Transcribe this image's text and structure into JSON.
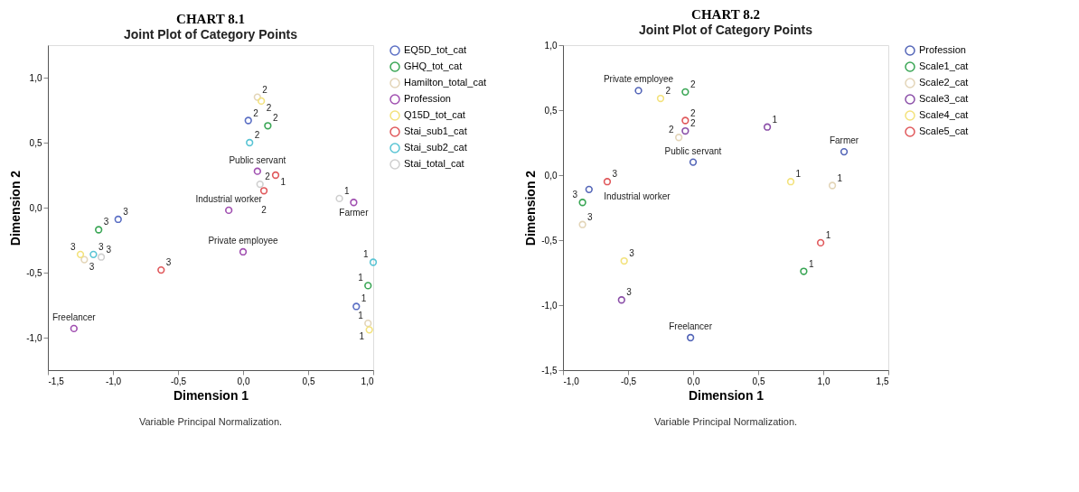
{
  "chart_data": [
    {
      "type": "scatter",
      "title": "CHART 8.1",
      "subtitle": "Joint Plot of Category Points",
      "xlabel": "Dimension 1",
      "ylabel": "Dimension 2",
      "xlim": [
        -1.5,
        1.0
      ],
      "ylim": [
        -1.25,
        1.25
      ],
      "xticks": [
        {
          "value": -1.5,
          "label": "-1,5"
        },
        {
          "value": -1.0,
          "label": "-1,0"
        },
        {
          "value": -0.5,
          "label": "-0,5"
        },
        {
          "value": 0.0,
          "label": "0,0"
        },
        {
          "value": 0.5,
          "label": "0,5"
        },
        {
          "value": 1.0,
          "label": "1,0"
        }
      ],
      "yticks": [
        {
          "value": -1.0,
          "label": "-1,0"
        },
        {
          "value": -0.5,
          "label": "-0,5"
        },
        {
          "value": 0.0,
          "label": "0,0"
        },
        {
          "value": 0.5,
          "label": "0,5"
        },
        {
          "value": 1.0,
          "label": "1,0"
        }
      ],
      "grid": false,
      "legend": "top right",
      "marker": "circle",
      "annotations": [
        {
          "text": "3",
          "x": -0.96,
          "y": -0.09
        },
        {
          "text": "3",
          "x": -1.11,
          "y": -0.17
        },
        {
          "text": "3",
          "x": -1.25,
          "y": -0.36
        },
        {
          "text": "3",
          "x": -1.22,
          "y": -0.4
        },
        {
          "text": "3",
          "x": -1.15,
          "y": -0.36
        },
        {
          "text": "3",
          "x": -1.09,
          "y": -0.38
        },
        {
          "text": "3",
          "x": -0.63,
          "y": -0.48
        },
        {
          "text": "Freelancer",
          "x": -1.3,
          "y": -0.93
        },
        {
          "text": "Industrial worker",
          "x": -0.11,
          "y": -0.02
        },
        {
          "text": "Private employee",
          "x": 0.0,
          "y": -0.34
        },
        {
          "text": "2",
          "x": 0.11,
          "y": 0.85
        },
        {
          "text": "2",
          "x": 0.14,
          "y": 0.82
        },
        {
          "text": "2",
          "x": 0.04,
          "y": 0.67
        },
        {
          "text": "2",
          "x": 0.19,
          "y": 0.63
        },
        {
          "text": "2",
          "x": 0.05,
          "y": 0.5
        },
        {
          "text": "Public servant",
          "x": 0.11,
          "y": 0.28
        },
        {
          "text": "2",
          "x": 0.13,
          "y": 0.18
        },
        {
          "text": "2",
          "x": 0.16,
          "y": 0.13
        },
        {
          "text": "1",
          "x": 0.25,
          "y": 0.25
        },
        {
          "text": "1",
          "x": 0.74,
          "y": 0.07
        },
        {
          "text": "Farmer",
          "x": 0.85,
          "y": 0.04
        },
        {
          "text": "1",
          "x": 1.0,
          "y": -0.42
        },
        {
          "text": "1",
          "x": 0.96,
          "y": -0.6
        },
        {
          "text": "1",
          "x": 0.87,
          "y": -0.76
        },
        {
          "text": "1",
          "x": 0.96,
          "y": -0.89
        },
        {
          "text": "1",
          "x": 0.97,
          "y": -0.94
        },
        "Variable Principal Normalization."
      ],
      "series": [
        {
          "name": "EQ5D_tot_cat",
          "color": "#5b6fc4",
          "x": [
            0.87,
            0.04,
            -0.96
          ],
          "values": [
            -0.76,
            0.67,
            -0.09
          ]
        },
        {
          "name": "GHQ_tot_cat",
          "color": "#3aa655",
          "x": [
            0.96,
            0.19,
            -1.11
          ],
          "values": [
            -0.6,
            0.63,
            -0.17
          ]
        },
        {
          "name": "Hamilton_total_cat",
          "color": "#e3d5b8",
          "x": [
            0.96,
            0.11,
            -1.22
          ],
          "values": [
            -0.89,
            0.85,
            -0.4
          ]
        },
        {
          "name": "Profession",
          "color": "#a04fb0",
          "x": [
            -1.3,
            -0.11,
            0.0,
            0.11,
            0.85
          ],
          "values": [
            -0.93,
            -0.02,
            -0.34,
            0.28,
            0.04
          ]
        },
        {
          "name": "Q15D_tot_cat",
          "color": "#f3e27c",
          "x": [
            0.97,
            0.14,
            -1.25
          ],
          "values": [
            -0.94,
            0.82,
            -0.36
          ]
        },
        {
          "name": "Stai_sub1_cat",
          "color": "#e0585b",
          "x": [
            0.25,
            0.16,
            -0.63
          ],
          "values": [
            0.25,
            0.13,
            -0.48
          ]
        },
        {
          "name": "Stai_sub2_cat",
          "color": "#59c4d4",
          "x": [
            1.0,
            0.05,
            -1.15
          ],
          "values": [
            -0.42,
            0.5,
            -0.36
          ]
        },
        {
          "name": "Stai_total_cat",
          "color": "#cfcfcf",
          "x": [
            0.74,
            0.13,
            -1.09
          ],
          "values": [
            0.07,
            0.18,
            -0.38
          ]
        }
      ]
    },
    {
      "type": "scatter",
      "title": "CHART 8.2",
      "subtitle": "Joint Plot of Category Points",
      "xlabel": "Dimension 1",
      "ylabel": "Dimension 2",
      "xlim": [
        -1.0,
        1.5
      ],
      "ylim": [
        -1.5,
        1.0
      ],
      "xticks": [
        {
          "value": -1.0,
          "label": "-1,0"
        },
        {
          "value": -0.5,
          "label": "-0,5"
        },
        {
          "value": 0.0,
          "label": "0,0"
        },
        {
          "value": 0.5,
          "label": "0,5"
        },
        {
          "value": 1.0,
          "label": "1,0"
        },
        {
          "value": 1.5,
          "label": "1,5"
        }
      ],
      "yticks": [
        {
          "value": -1.5,
          "label": "-1,5"
        },
        {
          "value": -1.0,
          "label": "-1,0"
        },
        {
          "value": -0.5,
          "label": "-0,5"
        },
        {
          "value": 0.0,
          "label": "0,0"
        },
        {
          "value": 0.5,
          "label": "0,5"
        },
        {
          "value": 1.0,
          "label": "1,0"
        }
      ],
      "grid": false,
      "legend": "top right",
      "marker": "circle",
      "annotations": [
        {
          "text": "Private employee",
          "x": -0.42,
          "y": 0.65
        },
        {
          "text": "2",
          "x": -0.25,
          "y": 0.59
        },
        {
          "text": "2",
          "x": -0.06,
          "y": 0.64
        },
        {
          "text": "2",
          "x": -0.06,
          "y": 0.42
        },
        {
          "text": "2",
          "x": -0.06,
          "y": 0.34
        },
        {
          "text": "2",
          "x": -0.11,
          "y": 0.29
        },
        {
          "text": "Public servant",
          "x": 0.0,
          "y": 0.1
        },
        {
          "text": "3",
          "x": -0.66,
          "y": -0.05
        },
        {
          "text": "3",
          "x": -0.85,
          "y": -0.21
        },
        {
          "text": "Industrial worker",
          "x": -0.8,
          "y": -0.11
        },
        {
          "text": "3",
          "x": -0.85,
          "y": -0.38
        },
        {
          "text": "3",
          "x": -0.53,
          "y": -0.66
        },
        {
          "text": "3",
          "x": -0.55,
          "y": -0.96
        },
        {
          "text": "Freelancer",
          "x": -0.02,
          "y": -1.25
        },
        {
          "text": "1",
          "x": 0.57,
          "y": 0.37
        },
        {
          "text": "Farmer",
          "x": 1.16,
          "y": 0.18
        },
        {
          "text": "1",
          "x": 0.75,
          "y": -0.05
        },
        {
          "text": "1",
          "x": 1.07,
          "y": -0.08
        },
        {
          "text": "1",
          "x": 0.98,
          "y": -0.52
        },
        {
          "text": "1",
          "x": 0.85,
          "y": -0.74
        },
        "Variable Principal Normalization."
      ],
      "series": [
        {
          "name": "Profession",
          "color": "#5466b8",
          "x": [
            -0.42,
            0.0,
            -0.8,
            -0.02,
            1.16
          ],
          "values": [
            0.65,
            0.1,
            -0.11,
            -1.25,
            0.18
          ]
        },
        {
          "name": "Scale1_cat",
          "color": "#3aa655",
          "x": [
            0.85,
            -0.06,
            -0.85
          ],
          "values": [
            -0.74,
            0.64,
            -0.21
          ]
        },
        {
          "name": "Scale2_cat",
          "color": "#e3d5b8",
          "x": [
            1.07,
            -0.11,
            -0.85
          ],
          "values": [
            -0.08,
            0.29,
            -0.38
          ]
        },
        {
          "name": "Scale3_cat",
          "color": "#8b4fa8",
          "x": [
            0.57,
            -0.06,
            -0.55
          ],
          "values": [
            0.37,
            0.34,
            -0.96
          ]
        },
        {
          "name": "Scale4_cat",
          "color": "#f3e27c",
          "x": [
            0.75,
            -0.25,
            -0.53
          ],
          "values": [
            -0.05,
            0.59,
            -0.66
          ]
        },
        {
          "name": "Scale5_cat",
          "color": "#e0585b",
          "x": [
            0.98,
            -0.06,
            -0.66
          ],
          "values": [
            -0.52,
            0.42,
            -0.05
          ]
        }
      ]
    }
  ]
}
